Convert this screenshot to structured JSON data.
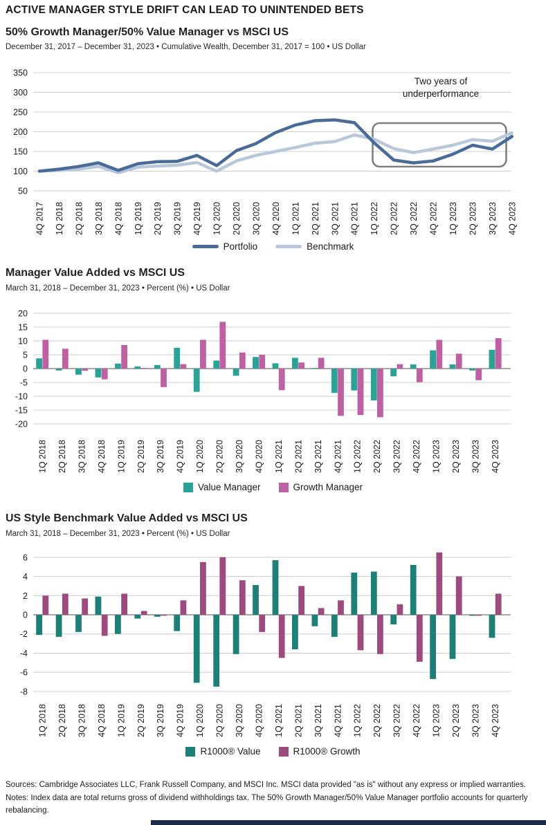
{
  "page": {
    "title": "ACTIVE MANAGER STYLE DRIFT CAN LEAD TO UNINTENDED BETS"
  },
  "colors": {
    "portfolio": "#4a6b98",
    "benchmark": "#b7c8da",
    "value_manager": "#28a396",
    "growth_manager": "#bf60a3",
    "r1000_value": "#1d8077",
    "r1000_growth": "#9d4b7e",
    "gridline": "#cccccc",
    "zero_line": "#8a8a8a",
    "annotation_box": "#7f7f7f",
    "bottom_bar": "#1a2b4a"
  },
  "chart_data": [
    {
      "type": "line",
      "title": "50% Growth Manager/50% Value Manager vs MSCI US",
      "subtitle": "December 31, 2017 – December 31, 2023 • Cumulative Wealth, December 31, 2017 = 100 • US Dollar",
      "x": [
        "4Q 2017",
        "1Q 2018",
        "2Q 2018",
        "3Q 2018",
        "4Q 2018",
        "1Q 2019",
        "2Q 2019",
        "3Q 2019",
        "4Q 2019",
        "1Q 2020",
        "2Q 2020",
        "3Q 2020",
        "4Q 2020",
        "1Q 2021",
        "2Q 2021",
        "3Q 2021",
        "4Q 2021",
        "1Q 2022",
        "2Q 2022",
        "3Q 2022",
        "4Q 2022",
        "1Q 2023",
        "2Q 2023",
        "3Q 2023",
        "4Q 2023"
      ],
      "series": [
        {
          "name": "Portfolio",
          "color": "#4a6b98",
          "values": [
            100,
            105,
            112,
            121,
            102,
            119,
            124,
            125,
            140,
            114,
            152,
            170,
            198,
            217,
            228,
            230,
            223,
            172,
            128,
            121,
            126,
            143,
            166,
            156,
            188
          ]
        },
        {
          "name": "Benchmark",
          "color": "#b7c8da",
          "values": [
            100,
            102,
            105,
            112,
            96,
            110,
            113,
            115,
            122,
            100,
            126,
            140,
            150,
            160,
            171,
            175,
            192,
            181,
            157,
            147,
            156,
            166,
            180,
            176,
            197
          ]
        }
      ],
      "ylim": [
        50,
        350
      ],
      "yticks": [
        350,
        300,
        250,
        200,
        150,
        100,
        50
      ],
      "grid": true,
      "legend_position": "bottom",
      "annotation": {
        "lines": [
          "Two years of",
          "underperformance"
        ],
        "box_x_range": [
          "2Q 2022",
          "4Q 2023"
        ]
      }
    },
    {
      "type": "bar",
      "title": "Manager Value Added vs MSCI US",
      "subtitle": "March 31, 2018 – December 31, 2023 • Percent (%) • US Dollar",
      "categories": [
        "1Q 2018",
        "2Q 2018",
        "3Q 2018",
        "4Q 2018",
        "1Q 2019",
        "2Q 2019",
        "3Q 2019",
        "4Q 2019",
        "1Q 2020",
        "2Q 2020",
        "3Q 2020",
        "4Q 2020",
        "1Q 2021",
        "2Q 2021",
        "3Q 2021",
        "4Q 2021",
        "1Q 2022",
        "2Q 2022",
        "3Q 2022",
        "4Q 2022",
        "1Q 2023",
        "2Q 2023",
        "3Q 2023",
        "4Q 2023"
      ],
      "series": [
        {
          "name": "Value Manager",
          "color": "#28a396",
          "values": [
            3.7,
            -0.7,
            -2.2,
            -3.2,
            1.8,
            0.8,
            1.3,
            7.5,
            -8.4,
            2.9,
            -2.6,
            4.2,
            1.9,
            3.9,
            0.1,
            -8.8,
            -7.9,
            -11.5,
            -2.8,
            1.5,
            6.6,
            1.5,
            -0.7,
            6.8
          ]
        },
        {
          "name": "Growth Manager",
          "color": "#bf60a3",
          "values": [
            10.4,
            7.2,
            -0.8,
            -3.9,
            8.5,
            0.1,
            -6.7,
            1.6,
            10.4,
            16.9,
            5.8,
            5.0,
            -7.8,
            2.2,
            3.9,
            -17.1,
            -16.8,
            -17.6,
            1.6,
            -4.9,
            10.4,
            5.4,
            -4.2,
            11.0
          ]
        }
      ],
      "ylim": [
        -20,
        20
      ],
      "yticks": [
        20,
        15,
        10,
        5,
        0,
        -5,
        -10,
        -15,
        -20
      ],
      "grid": true,
      "legend_position": "bottom"
    },
    {
      "type": "bar",
      "title": "US Style Benchmark Value Added vs MSCI US",
      "subtitle": "March 31, 2018 – December 31, 2023 • Percent (%) • US Dollar",
      "categories": [
        "1Q 2018",
        "2Q 2018",
        "3Q 2018",
        "4Q 2018",
        "1Q 2019",
        "2Q 2019",
        "3Q 2019",
        "4Q 2019",
        "1Q 2020",
        "2Q 2020",
        "3Q 2020",
        "4Q 2020",
        "1Q 2021",
        "2Q 2021",
        "3Q 2021",
        "4Q 2021",
        "1Q 2022",
        "2Q 2022",
        "3Q 2022",
        "4Q 2022",
        "1Q 2023",
        "2Q 2023",
        "3Q 2023",
        "4Q 2023"
      ],
      "series": [
        {
          "name": "R1000® Value",
          "color": "#1d8077",
          "values": [
            -2.1,
            -2.3,
            -1.8,
            1.9,
            -2.0,
            -0.4,
            -0.2,
            -1.7,
            -7.1,
            -7.5,
            -4.1,
            3.1,
            5.7,
            -3.6,
            -1.2,
            -2.3,
            4.4,
            4.5,
            -1.0,
            5.2,
            -6.7,
            -4.6,
            -0.1,
            -2.4
          ]
        },
        {
          "name": "R1000® Growth",
          "color": "#9d4b7e",
          "values": [
            2.0,
            2.2,
            1.7,
            -2.2,
            2.2,
            0.4,
            -0.1,
            1.5,
            5.5,
            6.0,
            3.6,
            -1.8,
            -4.5,
            3.0,
            0.7,
            1.5,
            -3.7,
            -4.1,
            1.1,
            -4.9,
            6.5,
            4.0,
            -0.1,
            2.2
          ]
        }
      ],
      "ylim": [
        -8,
        6
      ],
      "yticks": [
        6,
        4,
        2,
        0,
        -2,
        -4,
        -6,
        -8
      ],
      "grid": true,
      "legend_position": "bottom"
    }
  ],
  "footer": {
    "sources": "Sources: Cambridge Associates LLC, Frank Russell Company, and MSCI Inc. MSCI data provided \"as is\" without any express or implied warranties.",
    "notes": "Notes: Index data are total returns gross of dividend withholdings tax. The 50% Growth Manager/50% Value Manager portfolio accounts for quarterly rebalancing."
  }
}
